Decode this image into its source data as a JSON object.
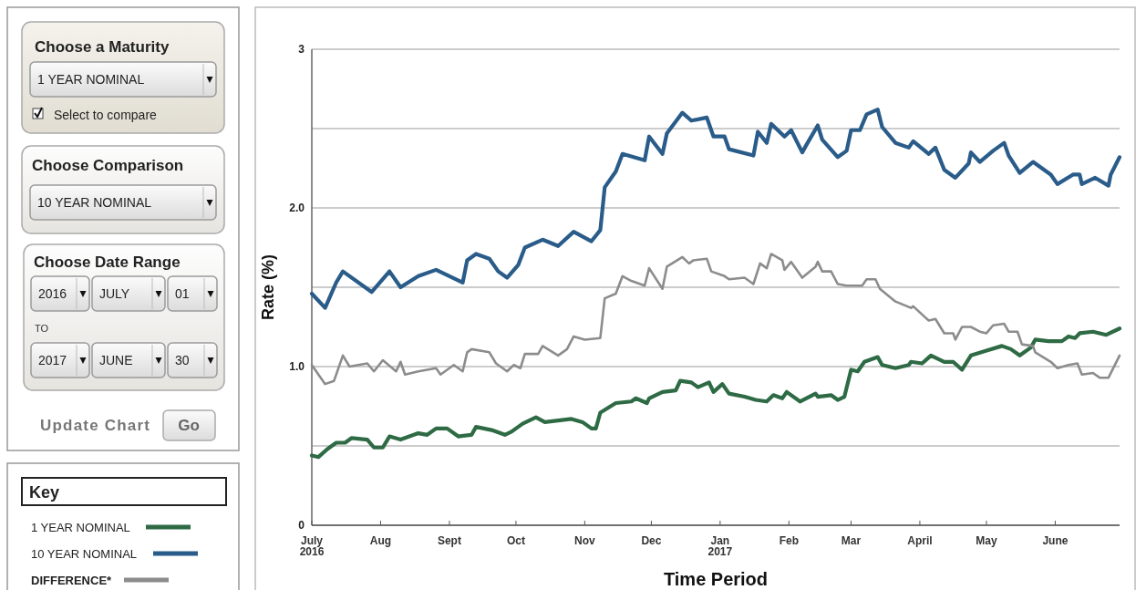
{
  "chart_data": {
    "type": "line",
    "xlabel": "Time Period",
    "ylabel": "Rate (%)",
    "legend_title": "Key",
    "legend": "left",
    "grid": "y",
    "xlim": [
      "2016-07-01",
      "2017-06-30"
    ],
    "xticks": [
      {
        "value": "2016-07-01",
        "label": "July\n2016"
      },
      {
        "value": "2016-08-01",
        "label": "Aug"
      },
      {
        "value": "2016-09-01",
        "label": "Sept"
      },
      {
        "value": "2016-10-01",
        "label": "Oct"
      },
      {
        "value": "2016-11-01",
        "label": "Nov"
      },
      {
        "value": "2016-12-01",
        "label": "Dec"
      },
      {
        "value": "2017-01-01",
        "label": "Jan\n2017"
      },
      {
        "value": "2017-02-01",
        "label": "Feb"
      },
      {
        "value": "2017-03-01",
        "label": "Mar"
      },
      {
        "value": "2017-04-01",
        "label": "April"
      },
      {
        "value": "2017-05-01",
        "label": "May"
      },
      {
        "value": "2017-06-01",
        "label": "June"
      }
    ],
    "ylim": [
      0,
      3
    ],
    "yticks": [
      0,
      {
        "value": 0.5,
        "label": null
      },
      {
        "value": 1,
        "label": "1.0"
      },
      {
        "value": 1.5,
        "label": null
      },
      {
        "value": 2,
        "label": "2.0"
      },
      {
        "value": 2.5,
        "label": null
      },
      3
    ],
    "annotations": [
      "Choose a Maturity",
      "1 YEAR NOMINAL",
      "Select to compare",
      "Choose Comparison",
      "10 YEAR NOMINAL",
      "Choose Date Range",
      "2016",
      "JULY",
      "01",
      "TO",
      "2017",
      "JUNE",
      "30",
      "Update Chart",
      "Go"
    ],
    "series": [
      {
        "name": "1 YEAR NOMINAL",
        "color": "#2e6b45",
        "x": [
          "2016-07-01",
          "2016-07-04",
          "2016-07-08",
          "2016-07-12",
          "2016-07-16",
          "2016-07-19",
          "2016-07-26",
          "2016-07-29",
          "2016-08-02",
          "2016-08-05",
          "2016-08-10",
          "2016-08-18",
          "2016-08-22",
          "2016-08-26",
          "2016-08-31",
          "2016-09-05",
          "2016-09-11",
          "2016-09-13",
          "2016-09-20",
          "2016-09-26",
          "2016-09-29",
          "2016-10-04",
          "2016-10-10",
          "2016-10-14",
          "2016-10-26",
          "2016-10-31",
          "2016-11-04",
          "2016-11-06",
          "2016-11-08",
          "2016-11-15",
          "2016-11-22",
          "2016-11-24",
          "2016-11-29",
          "2016-11-30",
          "2016-12-06",
          "2016-12-12",
          "2016-12-14",
          "2016-12-19",
          "2016-12-22",
          "2016-12-27",
          "2016-12-29",
          "2017-01-02",
          "2017-01-05",
          "2017-01-12",
          "2017-01-17",
          "2017-01-22",
          "2017-01-25",
          "2017-01-29",
          "2017-01-31",
          "2017-02-06",
          "2017-02-13",
          "2017-02-14",
          "2017-02-20",
          "2017-02-23",
          "2017-02-26",
          "2017-03-01",
          "2017-03-04",
          "2017-03-07",
          "2017-03-13",
          "2017-03-15",
          "2017-03-21",
          "2017-03-27",
          "2017-03-28",
          "2017-04-02",
          "2017-04-06",
          "2017-04-12",
          "2017-04-16",
          "2017-04-20",
          "2017-04-24",
          "2017-05-01",
          "2017-05-08",
          "2017-05-12",
          "2017-05-16",
          "2017-05-21",
          "2017-05-23",
          "2017-05-29",
          "2017-06-04",
          "2017-06-07",
          "2017-06-10",
          "2017-06-12",
          "2017-06-18",
          "2017-06-24",
          "2017-06-30"
        ],
        "values": [
          0.44,
          0.43,
          0.48,
          0.52,
          0.52,
          0.55,
          0.54,
          0.49,
          0.49,
          0.56,
          0.54,
          0.58,
          0.57,
          0.61,
          0.61,
          0.56,
          0.57,
          0.62,
          0.6,
          0.57,
          0.59,
          0.64,
          0.68,
          0.65,
          0.67,
          0.65,
          0.61,
          0.61,
          0.71,
          0.77,
          0.78,
          0.8,
          0.77,
          0.8,
          0.84,
          0.85,
          0.91,
          0.9,
          0.87,
          0.9,
          0.84,
          0.89,
          0.83,
          0.81,
          0.79,
          0.78,
          0.82,
          0.8,
          0.84,
          0.78,
          0.83,
          0.81,
          0.82,
          0.79,
          0.81,
          0.98,
          0.97,
          1.03,
          1.06,
          1.01,
          0.99,
          1.01,
          1.03,
          1.02,
          1.07,
          1.03,
          1.03,
          0.98,
          1.07,
          1.1,
          1.13,
          1.11,
          1.07,
          1.12,
          1.17,
          1.16,
          1.16,
          1.19,
          1.18,
          1.21,
          1.22,
          1.2,
          1.24
        ]
      },
      {
        "name": "10 YEAR NOMINAL",
        "color": "#2a5c8a",
        "x": [
          "2016-07-01",
          "2016-07-07",
          "2016-07-12",
          "2016-07-15",
          "2016-07-28",
          "2016-08-05",
          "2016-08-10",
          "2016-08-18",
          "2016-08-26",
          "2016-09-07",
          "2016-09-09",
          "2016-09-13",
          "2016-09-19",
          "2016-09-23",
          "2016-09-27",
          "2016-10-02",
          "2016-10-05",
          "2016-10-13",
          "2016-10-20",
          "2016-10-27",
          "2016-11-04",
          "2016-11-08",
          "2016-11-10",
          "2016-11-15",
          "2016-11-18",
          "2016-11-28",
          "2016-11-30",
          "2016-12-06",
          "2016-12-08",
          "2016-12-15",
          "2016-12-19",
          "2016-12-26",
          "2016-12-29",
          "2017-01-03",
          "2017-01-05",
          "2017-01-16",
          "2017-01-18",
          "2017-01-22",
          "2017-01-24",
          "2017-01-30",
          "2017-02-02",
          "2017-02-07",
          "2017-02-09",
          "2017-02-14",
          "2017-02-16",
          "2017-02-23",
          "2017-02-27",
          "2017-03-01",
          "2017-03-05",
          "2017-03-08",
          "2017-03-13",
          "2017-03-15",
          "2017-03-21",
          "2017-03-27",
          "2017-03-29",
          "2017-04-05",
          "2017-04-08",
          "2017-04-12",
          "2017-04-17",
          "2017-04-23",
          "2017-04-24",
          "2017-04-28",
          "2017-05-04",
          "2017-05-09",
          "2017-05-11",
          "2017-05-16",
          "2017-05-22",
          "2017-05-30",
          "2017-06-02",
          "2017-06-09",
          "2017-06-12",
          "2017-06-13",
          "2017-06-19",
          "2017-06-25",
          "2017-06-26",
          "2017-06-30"
        ],
        "values": [
          1.46,
          1.37,
          1.53,
          1.6,
          1.47,
          1.6,
          1.5,
          1.57,
          1.61,
          1.53,
          1.67,
          1.71,
          1.68,
          1.6,
          1.56,
          1.64,
          1.75,
          1.8,
          1.76,
          1.85,
          1.79,
          1.86,
          2.13,
          2.23,
          2.34,
          2.3,
          2.45,
          2.34,
          2.47,
          2.6,
          2.55,
          2.57,
          2.45,
          2.45,
          2.37,
          2.33,
          2.48,
          2.41,
          2.53,
          2.45,
          2.49,
          2.35,
          2.4,
          2.52,
          2.43,
          2.32,
          2.36,
          2.49,
          2.49,
          2.59,
          2.62,
          2.51,
          2.41,
          2.38,
          2.42,
          2.34,
          2.38,
          2.24,
          2.19,
          2.28,
          2.35,
          2.29,
          2.36,
          2.41,
          2.33,
          2.22,
          2.29,
          2.21,
          2.15,
          2.21,
          2.21,
          2.15,
          2.19,
          2.14,
          2.21,
          2.32
        ]
      },
      {
        "name": "DIFFERENCE*",
        "color": "#8c8c8c",
        "x": [
          "2016-07-01",
          "2016-07-07",
          "2016-07-11",
          "2016-07-15",
          "2016-07-18",
          "2016-07-26",
          "2016-07-29",
          "2016-08-02",
          "2016-08-08",
          "2016-08-10",
          "2016-08-12",
          "2016-08-18",
          "2016-08-26",
          "2016-08-28",
          "2016-09-03",
          "2016-09-07",
          "2016-09-09",
          "2016-09-11",
          "2016-09-19",
          "2016-09-22",
          "2016-09-27",
          "2016-09-30",
          "2016-10-03",
          "2016-10-05",
          "2016-10-11",
          "2016-10-13",
          "2016-10-20",
          "2016-10-24",
          "2016-10-27",
          "2016-11-01",
          "2016-11-08",
          "2016-11-10",
          "2016-11-15",
          "2016-11-18",
          "2016-11-22",
          "2016-11-28",
          "2016-11-30",
          "2016-12-06",
          "2016-12-08",
          "2016-12-15",
          "2016-12-18",
          "2016-12-20",
          "2016-12-26",
          "2016-12-28",
          "2017-01-03",
          "2017-01-05",
          "2017-01-12",
          "2017-01-16",
          "2017-01-19",
          "2017-01-22",
          "2017-01-24",
          "2017-01-29",
          "2017-01-30",
          "2017-02-02",
          "2017-02-07",
          "2017-02-13",
          "2017-02-14",
          "2017-02-16",
          "2017-02-20",
          "2017-02-23",
          "2017-02-27",
          "2017-03-06",
          "2017-03-08",
          "2017-03-12",
          "2017-03-14",
          "2017-03-21",
          "2017-03-28",
          "2017-03-29",
          "2017-04-05",
          "2017-04-08",
          "2017-04-12",
          "2017-04-16",
          "2017-04-17",
          "2017-04-20",
          "2017-04-24",
          "2017-04-28",
          "2017-05-01",
          "2017-05-04",
          "2017-05-09",
          "2017-05-11",
          "2017-05-15",
          "2017-05-17",
          "2017-05-22",
          "2017-05-23",
          "2017-05-30",
          "2017-06-02",
          "2017-06-07",
          "2017-06-11",
          "2017-06-13",
          "2017-06-18",
          "2017-06-21",
          "2017-06-25",
          "2017-06-30"
        ],
        "values": [
          1.01,
          0.89,
          0.91,
          1.07,
          1.0,
          1.02,
          0.97,
          1.04,
          0.97,
          1.03,
          0.95,
          0.97,
          0.99,
          0.95,
          1.01,
          0.97,
          1.09,
          1.11,
          1.09,
          1.02,
          0.97,
          1.01,
          0.99,
          1.08,
          1.08,
          1.13,
          1.07,
          1.11,
          1.19,
          1.17,
          1.18,
          1.43,
          1.46,
          1.57,
          1.54,
          1.51,
          1.62,
          1.49,
          1.63,
          1.69,
          1.65,
          1.67,
          1.68,
          1.6,
          1.57,
          1.55,
          1.56,
          1.52,
          1.65,
          1.62,
          1.71,
          1.67,
          1.61,
          1.66,
          1.56,
          1.63,
          1.66,
          1.6,
          1.6,
          1.52,
          1.51,
          1.51,
          1.55,
          1.55,
          1.49,
          1.41,
          1.37,
          1.38,
          1.29,
          1.3,
          1.21,
          1.21,
          1.17,
          1.25,
          1.25,
          1.22,
          1.21,
          1.26,
          1.27,
          1.22,
          1.22,
          1.14,
          1.13,
          1.09,
          1.03,
          0.99,
          1.01,
          1.02,
          0.95,
          0.96,
          0.93,
          0.93,
          1.07
        ]
      }
    ]
  }
}
